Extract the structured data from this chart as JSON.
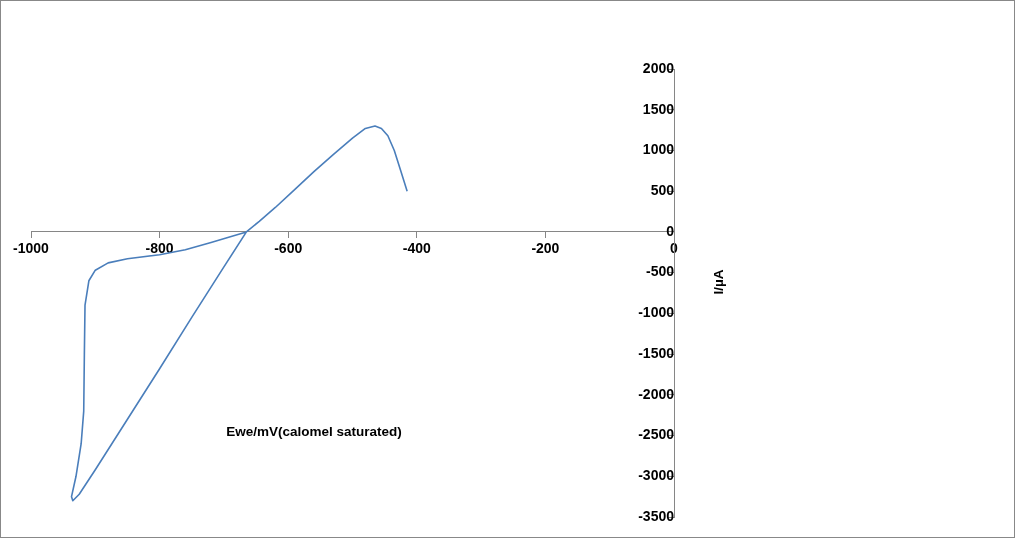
{
  "chart_data": {
    "type": "line",
    "xlabel": "Ewe/mV(calomel saturated)",
    "ylabel": "I/µA",
    "x": [
      -415,
      -425,
      -435,
      -445,
      -455,
      -465,
      -480,
      -500,
      -530,
      -560,
      -590,
      -620,
      -645,
      -665,
      -700,
      -750,
      -800,
      -850,
      -900,
      -925,
      -935,
      -937,
      -930,
      -922,
      -918,
      -917,
      -916,
      -910,
      -900,
      -880,
      -850,
      -800,
      -760,
      -720,
      -690,
      -665
    ],
    "series": [
      {
        "color": "#4a7ebb",
        "values": [
          500,
          750,
          1000,
          1180,
          1270,
          1300,
          1270,
          1150,
          950,
          740,
          520,
          300,
          130,
          0,
          -430,
          -1050,
          -1680,
          -2300,
          -2920,
          -3220,
          -3300,
          -3250,
          -3000,
          -2600,
          -2200,
          -1500,
          -900,
          -600,
          -470,
          -380,
          -330,
          -280,
          -220,
          -130,
          -60,
          0
        ]
      }
    ],
    "xlim": [
      -1000,
      0
    ],
    "xticks": [
      -1000,
      -800,
      -600,
      -400,
      -200,
      0
    ],
    "ylim": [
      -3500,
      2000
    ],
    "yticks": [
      -3500,
      -3000,
      -2500,
      -2000,
      -1500,
      -1000,
      -500,
      0,
      500,
      1000,
      1500,
      2000
    ],
    "marker": "none",
    "line_style": "solid"
  }
}
